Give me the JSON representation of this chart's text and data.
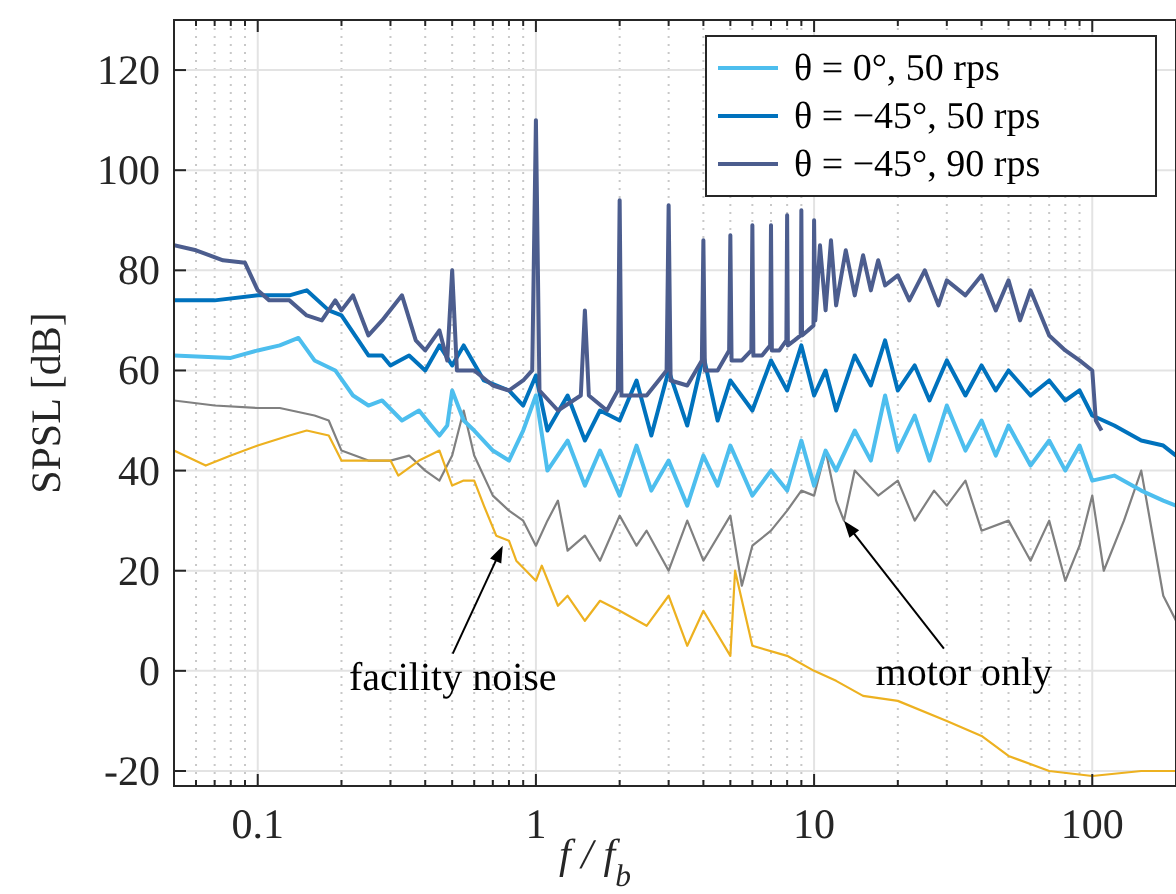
{
  "chart_data": {
    "type": "line",
    "xlabel": "f / f$_{b}$",
    "ylabel": "SPSL [dB]",
    "log": "x",
    "grid": true,
    "legend": "top right",
    "xlim": [
      0.05,
      200
    ],
    "ylim": [
      -23,
      130
    ],
    "xticks": [
      {
        "value": 0.06,
        "label": null
      },
      {
        "value": 0.07,
        "label": null
      },
      {
        "value": 0.08,
        "label": null
      },
      {
        "value": 0.09,
        "label": null
      },
      0.1,
      {
        "value": 0.2,
        "label": null
      },
      {
        "value": 0.3,
        "label": null
      },
      {
        "value": 0.4,
        "label": null
      },
      {
        "value": 0.5,
        "label": null
      },
      {
        "value": 0.6,
        "label": null
      },
      {
        "value": 0.7,
        "label": null
      },
      {
        "value": 0.8,
        "label": null
      },
      {
        "value": 0.9,
        "label": null
      },
      1,
      {
        "value": 2,
        "label": null
      },
      {
        "value": 3,
        "label": null
      },
      {
        "value": 4,
        "label": null
      },
      {
        "value": 5,
        "label": null
      },
      {
        "value": 6,
        "label": null
      },
      {
        "value": 7,
        "label": null
      },
      {
        "value": 8,
        "label": null
      },
      {
        "value": 9,
        "label": null
      },
      10,
      {
        "value": 20,
        "label": null
      },
      {
        "value": 30,
        "label": null
      },
      {
        "value": 40,
        "label": null
      },
      {
        "value": 50,
        "label": null
      },
      {
        "value": 60,
        "label": null
      },
      {
        "value": 70,
        "label": null
      },
      {
        "value": 80,
        "label": null
      },
      {
        "value": 90,
        "label": null
      },
      100,
      {
        "value": 200,
        "label": null
      }
    ],
    "yticks": [
      -20,
      0,
      20,
      40,
      60,
      80,
      100,
      120
    ],
    "series": [
      {
        "color": "#808080",
        "x": [
          0.05,
          0.07,
          0.1,
          0.12,
          0.16,
          0.18,
          0.2,
          0.25,
          0.3,
          0.35,
          0.4,
          0.45,
          0.5,
          0.55,
          0.6,
          0.7,
          0.8,
          0.9,
          1.0,
          1.1,
          1.2,
          1.3,
          1.5,
          1.7,
          2.0,
          2.3,
          2.5,
          3,
          3.5,
          4,
          5,
          5.5,
          6,
          7,
          8,
          9,
          10,
          11,
          12,
          12.8,
          14,
          17,
          20,
          23,
          27,
          30,
          35,
          40,
          50,
          60,
          70,
          80,
          90,
          100,
          110,
          130,
          150,
          180,
          200
        ],
        "values": [
          54,
          53,
          52.5,
          52.5,
          51,
          50,
          44,
          42,
          42,
          43,
          40,
          38,
          43,
          52,
          43,
          35,
          32,
          30,
          25,
          30,
          34,
          24,
          27,
          22,
          31,
          25,
          28,
          20,
          30,
          22,
          31,
          17,
          25,
          28,
          32,
          36,
          35,
          44,
          34,
          30,
          40,
          35,
          38,
          30,
          36,
          33,
          38,
          28,
          30,
          22,
          30,
          18,
          25,
          35,
          20,
          30,
          40,
          15,
          10
        ]
      },
      {
        "color": "#edb120",
        "x": [
          0.05,
          0.065,
          0.08,
          0.1,
          0.13,
          0.15,
          0.18,
          0.2,
          0.25,
          0.3,
          0.32,
          0.38,
          0.45,
          0.5,
          0.55,
          0.6,
          0.65,
          0.72,
          0.8,
          0.85,
          1.0,
          1.05,
          1.2,
          1.3,
          1.5,
          1.7,
          2,
          2.5,
          3,
          3.5,
          4,
          5,
          5.2,
          6,
          8,
          10,
          12,
          15,
          20,
          30,
          40,
          50,
          70,
          100,
          150,
          200
        ],
        "values": [
          44,
          41,
          43,
          45,
          47,
          48,
          47,
          42,
          42,
          42,
          39,
          42,
          44,
          37,
          38,
          38,
          33,
          27,
          26,
          22,
          18,
          21,
          13,
          15,
          10,
          14,
          12,
          9,
          15,
          5,
          12,
          3,
          20,
          5,
          3,
          0,
          -2,
          -5,
          -6,
          -10,
          -13,
          -17,
          -20,
          -21,
          -20,
          -20
        ]
      },
      {
        "name": "θ = 0°, 50 rps",
        "color": "#4dbeee",
        "x": [
          0.05,
          0.08,
          0.1,
          0.12,
          0.14,
          0.16,
          0.19,
          0.22,
          0.25,
          0.28,
          0.33,
          0.38,
          0.42,
          0.45,
          0.48,
          0.5,
          0.55,
          0.6,
          0.7,
          0.8,
          0.9,
          1.0,
          1.1,
          1.3,
          1.5,
          1.7,
          2.0,
          2.3,
          2.6,
          3,
          3.5,
          4,
          4.5,
          5,
          6,
          7,
          8,
          9,
          10,
          11,
          12,
          14,
          16,
          18,
          20,
          23,
          26,
          30,
          35,
          40,
          45,
          50,
          60,
          70,
          80,
          90,
          100,
          120,
          150,
          180,
          200
        ],
        "values": [
          63,
          62.5,
          64,
          65,
          66.5,
          62,
          60,
          55,
          53,
          54,
          50,
          52,
          49,
          47,
          49,
          56,
          50,
          48,
          44,
          42,
          48,
          55,
          40,
          46,
          37,
          44,
          35,
          45,
          36,
          42,
          33,
          43,
          37,
          45,
          35,
          40,
          36,
          46,
          37,
          44,
          40,
          48,
          42,
          55,
          44,
          51,
          42,
          53,
          44,
          50,
          43,
          49,
          41,
          46,
          40,
          45,
          38,
          39,
          36,
          34,
          33
        ]
      },
      {
        "name": "θ = −45°, 50 rps",
        "color": "#0072bd",
        "x": [
          0.05,
          0.07,
          0.1,
          0.13,
          0.15,
          0.18,
          0.2,
          0.23,
          0.25,
          0.28,
          0.3,
          0.35,
          0.4,
          0.45,
          0.5,
          0.55,
          0.65,
          0.8,
          0.9,
          1.0,
          1.1,
          1.3,
          1.5,
          1.7,
          2.0,
          2.3,
          2.6,
          3.0,
          3.5,
          4,
          4.5,
          5,
          6,
          7,
          8,
          9,
          10,
          11,
          12,
          14,
          16,
          18,
          20,
          23,
          26,
          30,
          35,
          40,
          45,
          50,
          60,
          70,
          80,
          90,
          100,
          120,
          150,
          180,
          200
        ],
        "values": [
          74,
          74,
          75,
          75,
          76,
          72,
          71,
          66,
          63,
          63,
          61,
          63,
          60,
          65,
          61,
          65,
          58,
          56,
          53,
          59,
          48,
          55,
          46,
          52,
          50,
          58,
          47,
          60,
          49,
          63,
          50,
          58,
          52,
          62,
          56,
          65,
          55,
          60,
          52,
          63,
          57,
          66,
          56,
          61,
          54,
          62,
          55,
          61,
          56,
          60,
          55,
          58,
          54,
          56,
          51,
          49,
          46,
          45,
          43
        ]
      },
      {
        "name": "θ = −45°, 90 rps",
        "color": "#4c5d8e",
        "x": [
          0.05,
          0.06,
          0.075,
          0.09,
          0.1,
          0.11,
          0.13,
          0.15,
          0.17,
          0.19,
          0.2,
          0.22,
          0.25,
          0.28,
          0.33,
          0.37,
          0.4,
          0.45,
          0.48,
          0.5,
          0.52,
          0.6,
          0.7,
          0.8,
          0.9,
          0.97,
          1.0,
          1.03,
          1.2,
          1.45,
          1.5,
          1.55,
          1.8,
          1.97,
          2.0,
          2.03,
          2.5,
          2.95,
          3.0,
          3.05,
          3.5,
          3.95,
          4.0,
          4.05,
          4.5,
          4.95,
          5.0,
          5.05,
          5.5,
          5.95,
          6.0,
          6.05,
          6.5,
          6.95,
          7.0,
          7.05,
          7.5,
          7.95,
          8.0,
          8.05,
          8.5,
          8.95,
          9.0,
          9.05,
          9.5,
          9.95,
          10,
          10.1,
          10.5,
          11,
          11.5,
          12,
          13,
          14,
          15,
          16,
          17,
          18,
          20,
          22,
          25,
          28,
          30,
          35,
          40,
          45,
          50,
          55,
          60,
          70,
          80,
          90,
          100,
          103,
          108
        ],
        "values": [
          85,
          84,
          82,
          81.5,
          76,
          74,
          74,
          71,
          70,
          74,
          72,
          75,
          67,
          70,
          75,
          66,
          64,
          68,
          62,
          80,
          60,
          60,
          57,
          56,
          58,
          60,
          110,
          56,
          52,
          55,
          72,
          55,
          52,
          56,
          94,
          55,
          55,
          60,
          93,
          58,
          57,
          62,
          86,
          60,
          60,
          64,
          87,
          62,
          62,
          64,
          89,
          63,
          63,
          65,
          89,
          64,
          64,
          66,
          91,
          65,
          66,
          67,
          92,
          67,
          68,
          69,
          90,
          70,
          85,
          72,
          86,
          73,
          84,
          75,
          83,
          76,
          82,
          77,
          79,
          74,
          80,
          73,
          78,
          75,
          79,
          72,
          78,
          70,
          76,
          67,
          64,
          62,
          60,
          50,
          48
        ]
      }
    ],
    "annotations": [
      {
        "text": "facility noise",
        "x": 0.76,
        "y": 25
      },
      {
        "text": "motor only",
        "x": 12.8,
        "y": 30
      }
    ]
  }
}
